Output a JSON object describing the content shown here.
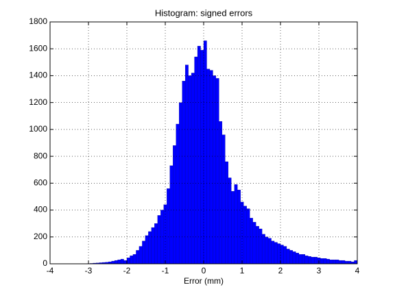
{
  "chart_data": {
    "type": "histogram",
    "title": "Histogram: signed errors",
    "x_label": "Error (mm)",
    "bins": [
      -4,
      -3.92,
      -3.84,
      -3.76,
      -3.68,
      -3.6,
      -3.52,
      -3.44,
      -3.36,
      -3.28,
      -3.2,
      -3.12,
      -3.04,
      -2.96,
      -2.88,
      -2.8,
      -2.72,
      -2.64,
      -2.56,
      -2.48,
      -2.4,
      -2.32,
      -2.24,
      -2.16,
      -2.08,
      -2,
      -1.92,
      -1.84,
      -1.76,
      -1.68,
      -1.6,
      -1.52,
      -1.44,
      -1.36,
      -1.28,
      -1.2,
      -1.12,
      -1.04,
      -0.96,
      -0.88,
      -0.8,
      -0.72,
      -0.64,
      -0.56,
      -0.48,
      -0.4,
      -0.32,
      -0.24,
      -0.16,
      -0.08,
      0,
      0.08,
      0.16,
      0.24,
      0.32,
      0.4,
      0.48,
      0.56,
      0.64,
      0.72,
      0.8,
      0.88,
      0.96,
      1.04,
      1.12,
      1.2,
      1.28,
      1.36,
      1.44,
      1.52,
      1.6,
      1.68,
      1.76,
      1.84,
      1.92,
      2,
      2.08,
      2.16,
      2.24,
      2.32,
      2.4,
      2.48,
      2.56,
      2.64,
      2.72,
      2.8,
      2.88,
      2.96,
      3.04,
      3.12,
      3.2,
      3.28,
      3.36,
      3.44,
      3.52,
      3.6,
      3.68,
      3.76,
      3.84,
      3.92,
      4
    ],
    "values": [
      0,
      0,
      0,
      0,
      0,
      0,
      0,
      0,
      0,
      0,
      0,
      0,
      2,
      3,
      5,
      6,
      8,
      10,
      12,
      15,
      20,
      25,
      30,
      35,
      25,
      45,
      60,
      70,
      100,
      130,
      170,
      210,
      240,
      270,
      300,
      360,
      400,
      440,
      560,
      730,
      880,
      1040,
      1200,
      1360,
      1480,
      1400,
      1420,
      1540,
      1620,
      1590,
      1660,
      1450,
      1440,
      1400,
      1380,
      1060,
      960,
      760,
      640,
      540,
      590,
      550,
      460,
      430,
      410,
      340,
      310,
      280,
      260,
      220,
      200,
      190,
      170,
      160,
      150,
      140,
      130,
      110,
      100,
      90,
      80,
      70,
      70,
      60,
      55,
      50,
      50,
      45,
      40,
      40,
      35,
      30,
      30,
      30,
      25,
      25,
      20,
      20,
      15,
      25
    ],
    "color": "#0000ff",
    "xlim": [
      -4,
      4
    ],
    "xticks": [
      -4,
      -3,
      -2,
      -1,
      0,
      1,
      2,
      3,
      4
    ],
    "ylim": [
      0,
      1800
    ],
    "yticks": [
      0,
      200,
      400,
      600,
      800,
      1000,
      1200,
      1400,
      1600,
      1800
    ],
    "grid": true
  }
}
